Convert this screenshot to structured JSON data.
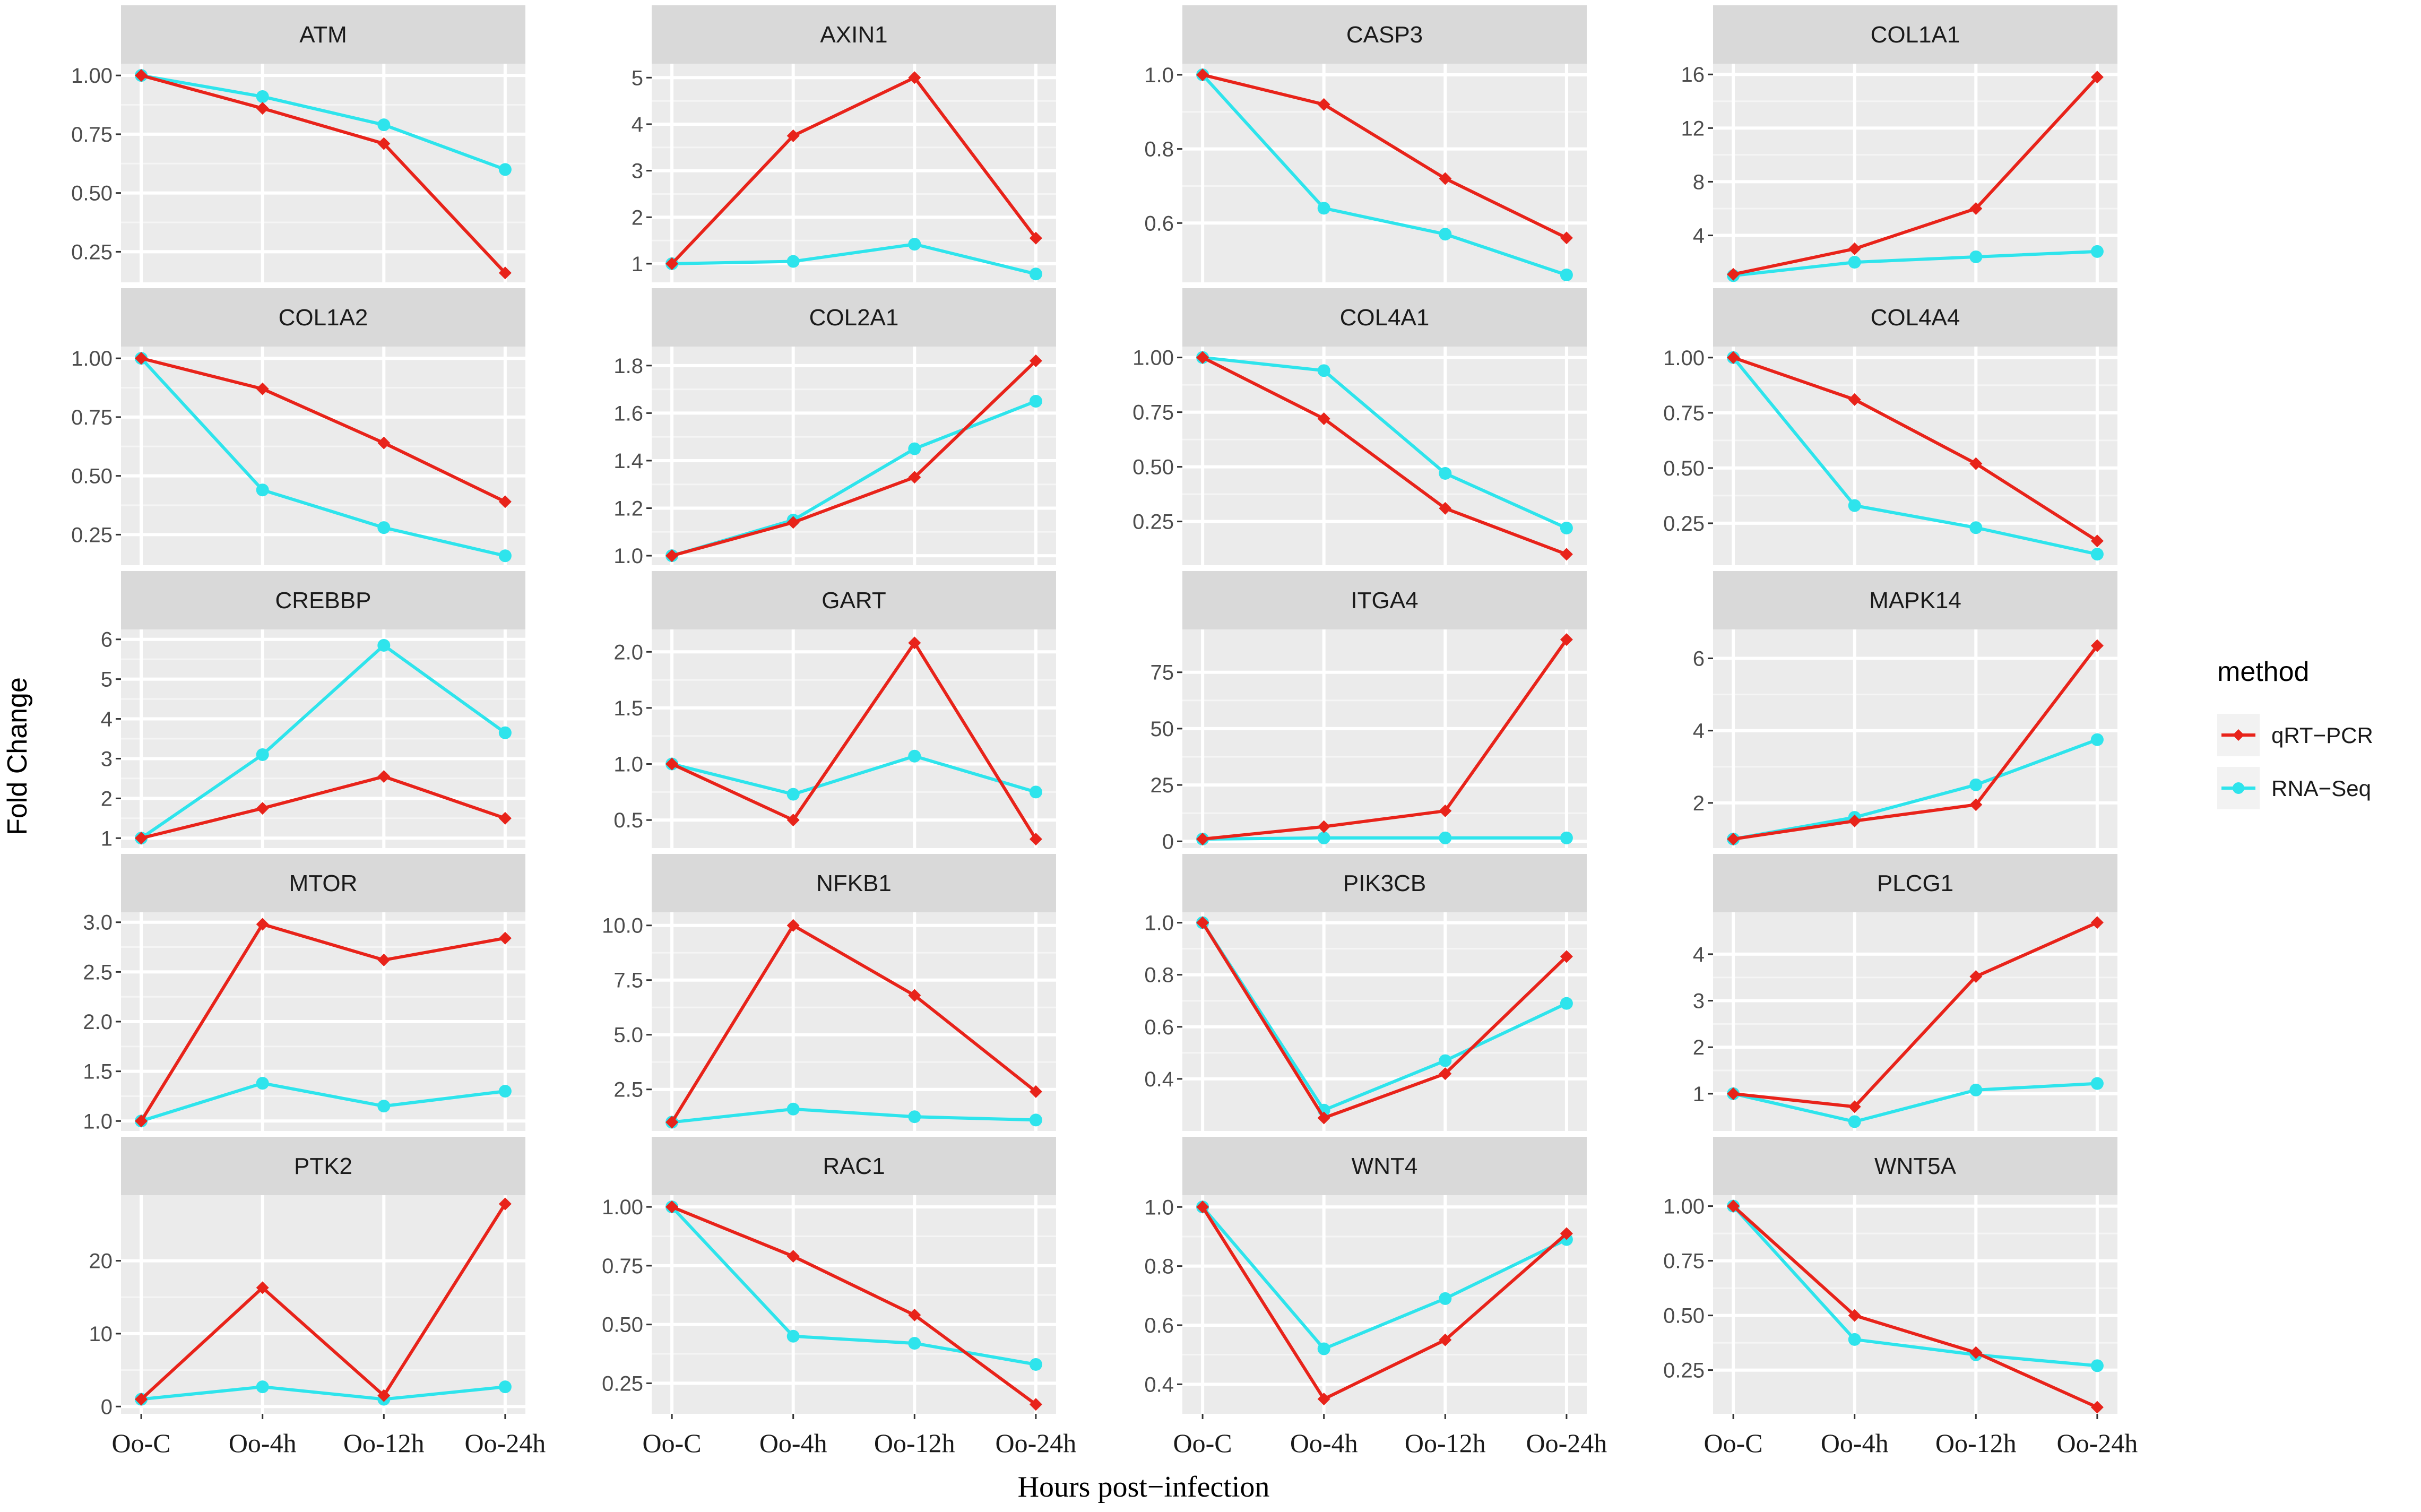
{
  "chart_data": {
    "type": "line",
    "layout": "facet-grid",
    "xlabel": "Hours post−infection",
    "ylabel": "Fold Change",
    "categories": [
      "Oo-C",
      "Oo-4h",
      "Oo-12h",
      "Oo-24h"
    ],
    "legend": {
      "title": "method",
      "position": "right",
      "entries": [
        {
          "name": "qRT−PCR",
          "color": "#e8231a"
        },
        {
          "name": "RNA−Seq",
          "color": "#2ee4ec"
        }
      ]
    },
    "panels": [
      {
        "name": "ATM",
        "ylim": [
          0.12,
          1.05
        ],
        "yticks": [
          "0.25",
          "0.50",
          "0.75",
          "1.00"
        ],
        "ytick_values": [
          0.25,
          0.5,
          0.75,
          1.0
        ],
        "series": [
          {
            "name": "qRT−PCR",
            "values": [
              1.0,
              0.86,
              0.71,
              0.16
            ]
          },
          {
            "name": "RNA−Seq",
            "values": [
              1.0,
              0.91,
              0.79,
              0.6
            ]
          }
        ]
      },
      {
        "name": "AXIN1",
        "ylim": [
          0.6,
          5.3
        ],
        "yticks": [
          "1",
          "2",
          "3",
          "4",
          "5"
        ],
        "ytick_values": [
          1,
          2,
          3,
          4,
          5
        ],
        "series": [
          {
            "name": "qRT−PCR",
            "values": [
              1.0,
              3.75,
              5.0,
              1.55
            ]
          },
          {
            "name": "RNA−Seq",
            "values": [
              1.0,
              1.05,
              1.42,
              0.78
            ]
          }
        ]
      },
      {
        "name": "CASP3",
        "ylim": [
          0.44,
          1.03
        ],
        "yticks": [
          "0.6",
          "0.8",
          "1.0"
        ],
        "ytick_values": [
          0.6,
          0.8,
          1.0
        ],
        "series": [
          {
            "name": "qRT−PCR",
            "values": [
              1.0,
              0.92,
              0.72,
              0.56
            ]
          },
          {
            "name": "RNA−Seq",
            "values": [
              1.0,
              0.64,
              0.57,
              0.46
            ]
          }
        ]
      },
      {
        "name": "COL1A1",
        "ylim": [
          0.5,
          16.8
        ],
        "yticks": [
          "4",
          "8",
          "12",
          "16"
        ],
        "ytick_values": [
          4,
          8,
          12,
          16
        ],
        "series": [
          {
            "name": "qRT−PCR",
            "values": [
              1.1,
              3.0,
              6.0,
              15.8
            ]
          },
          {
            "name": "RNA−Seq",
            "values": [
              1.0,
              2.0,
              2.4,
              2.8
            ]
          }
        ]
      },
      {
        "name": "COL1A2",
        "ylim": [
          0.12,
          1.05
        ],
        "yticks": [
          "0.25",
          "0.50",
          "0.75",
          "1.00"
        ],
        "ytick_values": [
          0.25,
          0.5,
          0.75,
          1.0
        ],
        "series": [
          {
            "name": "qRT−PCR",
            "values": [
              1.0,
              0.87,
              0.64,
              0.39
            ]
          },
          {
            "name": "RNA−Seq",
            "values": [
              1.0,
              0.44,
              0.28,
              0.16
            ]
          }
        ]
      },
      {
        "name": "COL2A1",
        "ylim": [
          0.96,
          1.88
        ],
        "yticks": [
          "1.0",
          "1.2",
          "1.4",
          "1.6",
          "1.8"
        ],
        "ytick_values": [
          1.0,
          1.2,
          1.4,
          1.6,
          1.8
        ],
        "series": [
          {
            "name": "qRT−PCR",
            "values": [
              1.0,
              1.14,
              1.33,
              1.82
            ]
          },
          {
            "name": "RNA−Seq",
            "values": [
              1.0,
              1.15,
              1.45,
              1.65
            ]
          }
        ]
      },
      {
        "name": "COL4A1",
        "ylim": [
          0.05,
          1.05
        ],
        "yticks": [
          "0.25",
          "0.50",
          "0.75",
          "1.00"
        ],
        "ytick_values": [
          0.25,
          0.5,
          0.75,
          1.0
        ],
        "series": [
          {
            "name": "qRT−PCR",
            "values": [
              1.0,
              0.72,
              0.31,
              0.1
            ]
          },
          {
            "name": "RNA−Seq",
            "values": [
              1.0,
              0.94,
              0.47,
              0.22
            ]
          }
        ]
      },
      {
        "name": "COL4A4",
        "ylim": [
          0.06,
          1.05
        ],
        "yticks": [
          "0.25",
          "0.50",
          "0.75",
          "1.00"
        ],
        "ytick_values": [
          0.25,
          0.5,
          0.75,
          1.0
        ],
        "series": [
          {
            "name": "qRT−PCR",
            "values": [
              1.0,
              0.81,
              0.52,
              0.17
            ]
          },
          {
            "name": "RNA−Seq",
            "values": [
              1.0,
              0.33,
              0.23,
              0.11
            ]
          }
        ]
      },
      {
        "name": "CREBBP",
        "ylim": [
          0.75,
          6.25
        ],
        "yticks": [
          "1",
          "2",
          "3",
          "4",
          "5",
          "6"
        ],
        "ytick_values": [
          1,
          2,
          3,
          4,
          5,
          6
        ],
        "series": [
          {
            "name": "qRT−PCR",
            "values": [
              1.0,
              1.75,
              2.55,
              1.5
            ]
          },
          {
            "name": "RNA−Seq",
            "values": [
              1.0,
              3.1,
              5.85,
              3.65
            ]
          }
        ]
      },
      {
        "name": "GART",
        "ylim": [
          0.25,
          2.2
        ],
        "yticks": [
          "0.5",
          "1.0",
          "1.5",
          "2.0"
        ],
        "ytick_values": [
          0.5,
          1.0,
          1.5,
          2.0
        ],
        "series": [
          {
            "name": "qRT−PCR",
            "values": [
              1.0,
              0.5,
              2.08,
              0.33
            ]
          },
          {
            "name": "RNA−Seq",
            "values": [
              1.0,
              0.73,
              1.07,
              0.75
            ]
          }
        ]
      },
      {
        "name": "ITGA4",
        "ylim": [
          -3,
          94
        ],
        "yticks": [
          "0",
          "25",
          "50",
          "75"
        ],
        "ytick_values": [
          0,
          25,
          50,
          75
        ],
        "series": [
          {
            "name": "qRT−PCR",
            "values": [
              1.0,
              6.5,
              13.5,
              89.5
            ]
          },
          {
            "name": "RNA−Seq",
            "values": [
              1.0,
              1.5,
              1.5,
              1.5
            ]
          }
        ]
      },
      {
        "name": "MAPK14",
        "ylim": [
          0.75,
          6.8
        ],
        "yticks": [
          "2",
          "4",
          "6"
        ],
        "ytick_values": [
          2,
          4,
          6
        ],
        "series": [
          {
            "name": "qRT−PCR",
            "values": [
              1.0,
              1.5,
              1.95,
              6.35
            ]
          },
          {
            "name": "RNA−Seq",
            "values": [
              1.0,
              1.6,
              2.5,
              3.75
            ]
          }
        ]
      },
      {
        "name": "MTOR",
        "ylim": [
          0.9,
          3.1
        ],
        "yticks": [
          "1.0",
          "1.5",
          "2.0",
          "2.5",
          "3.0"
        ],
        "ytick_values": [
          1.0,
          1.5,
          2.0,
          2.5,
          3.0
        ],
        "series": [
          {
            "name": "qRT−PCR",
            "values": [
              1.0,
              2.98,
              2.62,
              2.84
            ]
          },
          {
            "name": "RNA−Seq",
            "values": [
              1.0,
              1.38,
              1.15,
              1.3
            ]
          }
        ]
      },
      {
        "name": "NFKB1",
        "ylim": [
          0.6,
          10.6
        ],
        "yticks": [
          "2.5",
          "5.0",
          "7.5",
          "10.0"
        ],
        "ytick_values": [
          2.5,
          5.0,
          7.5,
          10.0
        ],
        "series": [
          {
            "name": "qRT−PCR",
            "values": [
              1.0,
              10.0,
              6.8,
              2.4
            ]
          },
          {
            "name": "RNA−Seq",
            "values": [
              1.0,
              1.6,
              1.25,
              1.1
            ]
          }
        ]
      },
      {
        "name": "PIK3CB",
        "ylim": [
          0.2,
          1.04
        ],
        "yticks": [
          "0.4",
          "0.6",
          "0.8",
          "1.0"
        ],
        "ytick_values": [
          0.4,
          0.6,
          0.8,
          1.0
        ],
        "series": [
          {
            "name": "qRT−PCR",
            "values": [
              1.0,
              0.25,
              0.42,
              0.87
            ]
          },
          {
            "name": "RNA−Seq",
            "values": [
              1.0,
              0.28,
              0.47,
              0.69
            ]
          }
        ]
      },
      {
        "name": "PLCG1",
        "ylim": [
          0.2,
          4.9
        ],
        "yticks": [
          "1",
          "2",
          "3",
          "4"
        ],
        "ytick_values": [
          1,
          2,
          3,
          4
        ],
        "series": [
          {
            "name": "qRT−PCR",
            "values": [
              1.0,
              0.72,
              3.52,
              4.68
            ]
          },
          {
            "name": "RNA−Seq",
            "values": [
              1.0,
              0.4,
              1.08,
              1.22
            ]
          }
        ]
      },
      {
        "name": "PTK2",
        "ylim": [
          -1,
          29
        ],
        "yticks": [
          "0",
          "10",
          "20"
        ],
        "ytick_values": [
          0,
          10,
          20
        ],
        "series": [
          {
            "name": "qRT−PCR",
            "values": [
              1.0,
              16.3,
              1.5,
              27.8
            ]
          },
          {
            "name": "RNA−Seq",
            "values": [
              1.0,
              2.7,
              1.0,
              2.7
            ]
          }
        ]
      },
      {
        "name": "RAC1",
        "ylim": [
          0.12,
          1.05
        ],
        "yticks": [
          "0.25",
          "0.50",
          "0.75",
          "1.00"
        ],
        "ytick_values": [
          0.25,
          0.5,
          0.75,
          1.0
        ],
        "series": [
          {
            "name": "qRT−PCR",
            "values": [
              1.0,
              0.79,
              0.54,
              0.16
            ]
          },
          {
            "name": "RNA−Seq",
            "values": [
              1.0,
              0.45,
              0.42,
              0.33
            ]
          }
        ]
      },
      {
        "name": "WNT4",
        "ylim": [
          0.3,
          1.04
        ],
        "yticks": [
          "0.4",
          "0.6",
          "0.8",
          "1.0"
        ],
        "ytick_values": [
          0.4,
          0.6,
          0.8,
          1.0
        ],
        "series": [
          {
            "name": "qRT−PCR",
            "values": [
              1.0,
              0.35,
              0.55,
              0.91
            ]
          },
          {
            "name": "RNA−Seq",
            "values": [
              1.0,
              0.52,
              0.69,
              0.89
            ]
          }
        ]
      },
      {
        "name": "WNT5A",
        "ylim": [
          0.05,
          1.05
        ],
        "yticks": [
          "0.25",
          "0.50",
          "0.75",
          "1.00"
        ],
        "ytick_values": [
          0.25,
          0.5,
          0.75,
          1.0
        ],
        "series": [
          {
            "name": "qRT−PCR",
            "values": [
              1.0,
              0.5,
              0.33,
              0.08
            ]
          },
          {
            "name": "RNA−Seq",
            "values": [
              1.0,
              0.39,
              0.32,
              0.27
            ]
          }
        ]
      }
    ]
  }
}
